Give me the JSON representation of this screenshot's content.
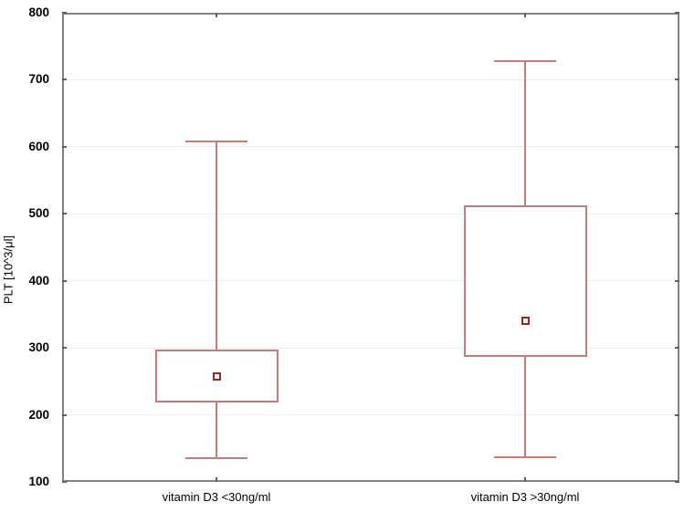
{
  "chart_data": {
    "type": "boxplot",
    "title": "",
    "xlabel": "",
    "ylabel": "PLT [10^3/μl]",
    "ylim": [
      100,
      800
    ],
    "yticks": [
      100,
      200,
      300,
      400,
      500,
      600,
      700,
      800
    ],
    "grid": "horizontal",
    "legend": "none",
    "categories": [
      "vitamin D3 <30ng/ml",
      "vitamin D3 >30ng/ml"
    ],
    "series": [
      {
        "name": "vitamin D3 <30ng/ml",
        "whisker_low": 135,
        "box_low": 218,
        "center_marker": 257,
        "box_high": 297,
        "whisker_high": 608
      },
      {
        "name": "vitamin D3 >30ng/ml",
        "whisker_low": 137,
        "box_low": 287,
        "center_marker": 340,
        "box_high": 512,
        "whisker_high": 728
      }
    ],
    "colors": {
      "box_line": "#c17e7e",
      "center_marker": "#942828",
      "frame": "#828282",
      "tick": "#5f5f5f",
      "grid": "#ececec",
      "text": "#000000",
      "background": "#ffffff"
    }
  }
}
